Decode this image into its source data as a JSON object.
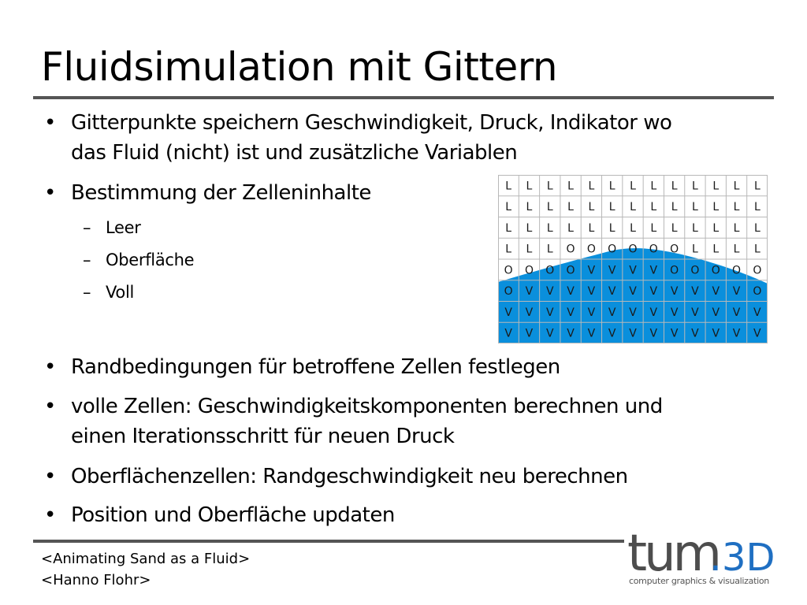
{
  "slide": {
    "title": "Fluidsimulation mit Gittern",
    "bullet_char": "•",
    "dash_char": "–",
    "bullets": [
      {
        "lines": [
          "Gitterpunkte speichern Geschwindigkeit, Druck, Indikator wo",
          "das Fluid (nicht) ist und zusätzliche Variablen"
        ]
      },
      {
        "lines": [
          "Bestimmung der Zelleninhalte"
        ],
        "sub": [
          "Leer",
          "Oberfläche",
          "Voll"
        ]
      },
      {
        "lines": [
          "Randbedingungen für betroffene Zellen festlegen"
        ]
      },
      {
        "lines": [
          "volle Zellen: Geschwindigkeitskomponenten berechnen und",
          "einen Iterationsschritt für neuen Druck"
        ]
      },
      {
        "lines": [
          "Oberflächenzellen: Randgeschwindigkeit neu berechnen"
        ]
      },
      {
        "lines": [
          "Position und Oberfläche updaten"
        ]
      }
    ]
  },
  "grid": {
    "cols": 13,
    "rows": [
      [
        "L",
        "L",
        "L",
        "L",
        "L",
        "L",
        "L",
        "L",
        "L",
        "L",
        "L",
        "L",
        "L"
      ],
      [
        "L",
        "L",
        "L",
        "L",
        "L",
        "L",
        "L",
        "L",
        "L",
        "L",
        "L",
        "L",
        "L"
      ],
      [
        "L",
        "L",
        "L",
        "L",
        "L",
        "L",
        "L",
        "L",
        "L",
        "L",
        "L",
        "L",
        "L"
      ],
      [
        "L",
        "L",
        "L",
        "O",
        "O",
        "O",
        "O",
        "O",
        "O",
        "L",
        "L",
        "L",
        "L"
      ],
      [
        "O",
        "O",
        "O",
        "O",
        "V",
        "V",
        "V",
        "V",
        "O",
        "O",
        "O",
        "O",
        "O"
      ],
      [
        "O",
        "V",
        "V",
        "V",
        "V",
        "V",
        "V",
        "V",
        "V",
        "V",
        "V",
        "V",
        "O"
      ],
      [
        "V",
        "V",
        "V",
        "V",
        "V",
        "V",
        "V",
        "V",
        "V",
        "V",
        "V",
        "V",
        "V"
      ],
      [
        "V",
        "V",
        "V",
        "V",
        "V",
        "V",
        "V",
        "V",
        "V",
        "V",
        "V",
        "V",
        "V"
      ]
    ],
    "fluid_color": "#0a8fdc",
    "line_color": "#b8b8b8"
  },
  "footer": {
    "line1": "<Animating Sand as a Fluid>",
    "line2": "<Hanno Flohr>"
  },
  "logo": {
    "text_main": "tum",
    "text_dot": ".",
    "text_3d": "3D",
    "tagline": "computer graphics & visualization",
    "gray": "#4d4d4d",
    "blue": "#1f6fc2"
  }
}
